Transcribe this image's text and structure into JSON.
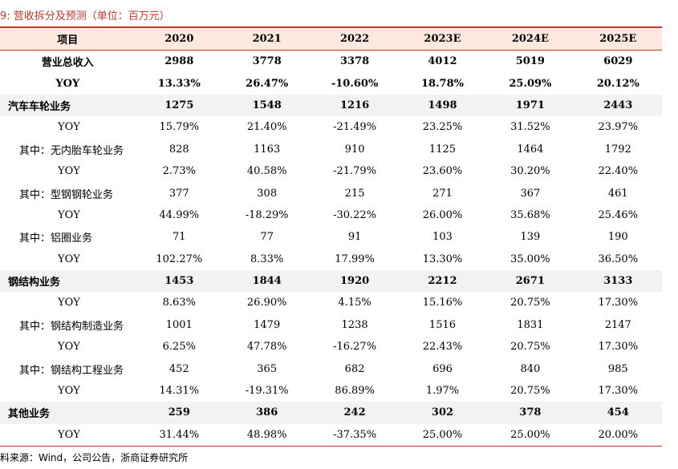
{
  "caption": "9:  营收拆分及预测（单位：百万元）",
  "table": {
    "header": [
      "项目",
      "2020",
      "2021",
      "2022",
      "2023E",
      "2024E",
      "2025E"
    ],
    "rows": [
      {
        "label": "营业总收入",
        "kind": "total",
        "values": [
          "2988",
          "3778",
          "3378",
          "4012",
          "5019",
          "6029"
        ]
      },
      {
        "label": "YOY",
        "kind": "total",
        "values": [
          "13.33%",
          "26.47%",
          "-10.60%",
          "18.78%",
          "25.09%",
          "20.12%"
        ]
      },
      {
        "label": "汽车车轮业务",
        "kind": "segment",
        "values": [
          "1275",
          "1548",
          "1216",
          "1498",
          "1971",
          "2443"
        ]
      },
      {
        "label": "YOY",
        "kind": "yoy",
        "values": [
          "15.79%",
          "21.40%",
          "-21.49%",
          "23.25%",
          "31.52%",
          "23.97%"
        ]
      },
      {
        "label": "其中：无内胎车轮业务",
        "kind": "sub",
        "values": [
          "828",
          "1163",
          "910",
          "1125",
          "1464",
          "1792"
        ]
      },
      {
        "label": "YOY",
        "kind": "yoy",
        "values": [
          "2.73%",
          "40.58%",
          "-21.79%",
          "23.60%",
          "30.20%",
          "22.40%"
        ]
      },
      {
        "label": "其中：型钢钢轮业务",
        "kind": "sub",
        "values": [
          "377",
          "308",
          "215",
          "271",
          "367",
          "461"
        ]
      },
      {
        "label": "YOY",
        "kind": "yoy",
        "values": [
          "44.99%",
          "-18.29%",
          "-30.22%",
          "26.00%",
          "35.68%",
          "25.46%"
        ]
      },
      {
        "label": "其中：铝圈业务",
        "kind": "sub",
        "values": [
          "71",
          "77",
          "91",
          "103",
          "139",
          "190"
        ]
      },
      {
        "label": "YOY",
        "kind": "yoy",
        "values": [
          "102.27%",
          "8.33%",
          "17.99%",
          "13.30%",
          "35.00%",
          "36.50%"
        ]
      },
      {
        "label": "钢结构业务",
        "kind": "segment",
        "values": [
          "1453",
          "1844",
          "1920",
          "2212",
          "2671",
          "3133"
        ]
      },
      {
        "label": "YOY",
        "kind": "yoy",
        "values": [
          "8.63%",
          "26.90%",
          "4.15%",
          "15.16%",
          "20.75%",
          "17.30%"
        ]
      },
      {
        "label": "其中：钢结构制造业务",
        "kind": "sub",
        "values": [
          "1001",
          "1479",
          "1238",
          "1516",
          "1831",
          "2147"
        ]
      },
      {
        "label": "YOY",
        "kind": "yoy",
        "values": [
          "6.25%",
          "47.78%",
          "-16.27%",
          "22.43%",
          "20.75%",
          "17.30%"
        ]
      },
      {
        "label": "其中：钢结构工程业务",
        "kind": "sub",
        "values": [
          "452",
          "365",
          "682",
          "696",
          "840",
          "985"
        ]
      },
      {
        "label": "YOY",
        "kind": "yoy",
        "values": [
          "14.31%",
          "-19.31%",
          "86.89%",
          "1.97%",
          "20.75%",
          "17.30%"
        ]
      },
      {
        "label": "其他业务",
        "kind": "segment",
        "values": [
          "259",
          "386",
          "242",
          "302",
          "378",
          "454"
        ]
      },
      {
        "label": "YOY",
        "kind": "yoy",
        "values": [
          "31.44%",
          "48.98%",
          "-37.35%",
          "25.00%",
          "25.00%",
          "20.00%"
        ]
      }
    ]
  },
  "source": "料来源：Wind，公司公告，浙商证券研究所",
  "colors": {
    "accent": "#c0392b",
    "header_bg": "#fde9df",
    "segment_bg": "#f2f2f2"
  }
}
